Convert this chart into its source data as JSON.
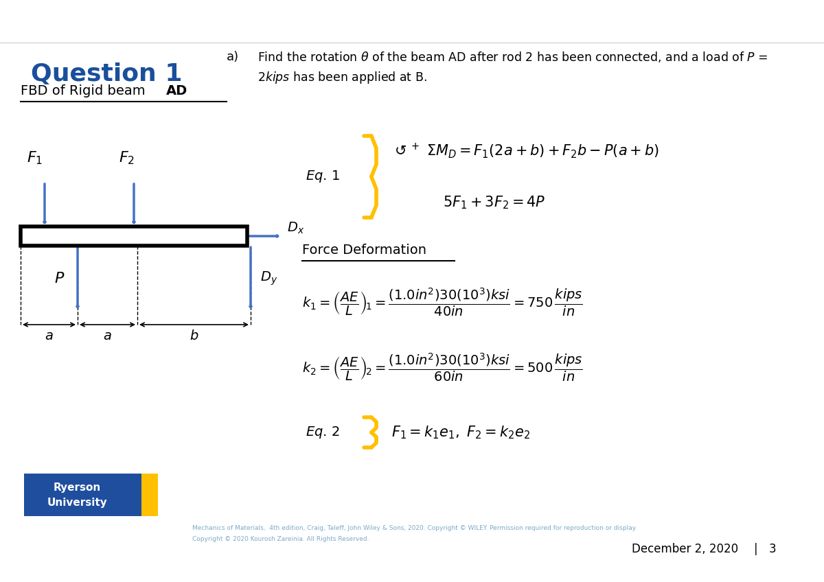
{
  "title": "Question 1",
  "bg_color": "#ffffff",
  "title_color": "#1a4f9c",
  "arrow_color": "#4472c4",
  "brace_color": "#ffc000",
  "ryerson_blue": "#1f4e9e",
  "ryerson_gold": "#ffc000",
  "footer1": "Mechanics of Materials,  4th edition, Craig, Taleff, John Wiley & Sons, 2020. Copyright © WILEY. Permission required for reproduction or display.",
  "footer2": "Copyright © 2020 Kourosh Zareinia. All Rights Reserved.",
  "date_text": "December 2, 2020",
  "page_num": "3"
}
